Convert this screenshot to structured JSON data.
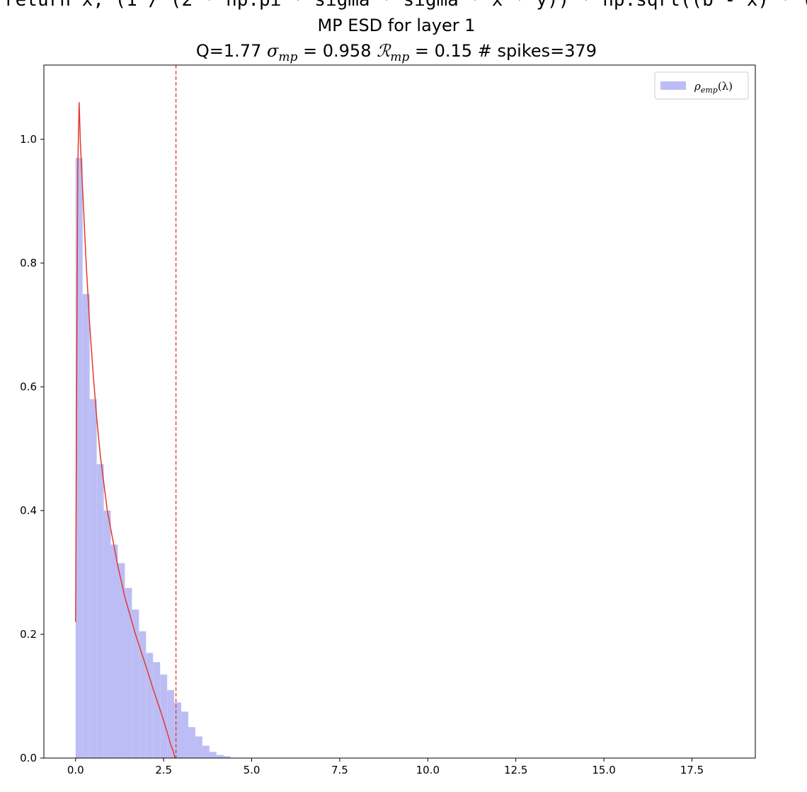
{
  "header": {
    "code_fragment": "return x, (1 / (2 * np.pi * sigma * sigma * x * y)) * np.sqrt((b - x) * ("
  },
  "colors": {
    "hist": "#bdbdf5",
    "mp_curve": "#e03a2f",
    "threshold": "#e03a2f"
  },
  "chart_data": {
    "type": "bar",
    "title": "MP ESD for layer 1",
    "subtitle": {
      "prefix": "Q=1.77 ",
      "sigma_symbol": "σ",
      "sigma_sub": "mp",
      "sigma_value": " = 0.958 ",
      "r_symbol": "ℛ",
      "r_sub": "mp",
      "r_value": " = 0.15 # spikes=379"
    },
    "legend": {
      "position": "top-right",
      "rho": "ρ",
      "rho_sub": "emp",
      "rho_arg": "(λ)"
    },
    "xlim": [
      -0.9,
      19.3
    ],
    "ylim": [
      0.0,
      1.12
    ],
    "xticks": [
      {
        "v": 0.0,
        "label": "0.0"
      },
      {
        "v": 2.5,
        "label": "2.5"
      },
      {
        "v": 5.0,
        "label": "5.0"
      },
      {
        "v": 7.5,
        "label": "7.5"
      },
      {
        "v": 10.0,
        "label": "10.0"
      },
      {
        "v": 12.5,
        "label": "12.5"
      },
      {
        "v": 15.0,
        "label": "15.0"
      },
      {
        "v": 17.5,
        "label": "17.5"
      }
    ],
    "yticks": [
      {
        "v": 0.0,
        "label": "0.0"
      },
      {
        "v": 0.2,
        "label": "0.2"
      },
      {
        "v": 0.4,
        "label": "0.4"
      },
      {
        "v": 0.6,
        "label": "0.6"
      },
      {
        "v": 0.8,
        "label": "0.8"
      },
      {
        "v": 1.0,
        "label": "1.0"
      }
    ],
    "histogram": {
      "bin_start": 0.0,
      "bin_width": 0.2,
      "values": [
        0.97,
        0.75,
        0.58,
        0.475,
        0.4,
        0.345,
        0.315,
        0.275,
        0.24,
        0.205,
        0.17,
        0.155,
        0.135,
        0.11,
        0.09,
        0.075,
        0.05,
        0.035,
        0.02,
        0.01,
        0.005,
        0.003
      ]
    },
    "mp_curve": {
      "lambda_minus": 0.0,
      "lambda_plus": 2.85,
      "points": [
        [
          0.0,
          0.22
        ],
        [
          0.03,
          0.6
        ],
        [
          0.06,
          0.95
        ],
        [
          0.1,
          1.06
        ],
        [
          0.14,
          0.99
        ],
        [
          0.2,
          0.92
        ],
        [
          0.3,
          0.8
        ],
        [
          0.4,
          0.7
        ],
        [
          0.5,
          0.62
        ],
        [
          0.6,
          0.55
        ],
        [
          0.7,
          0.49
        ],
        [
          0.8,
          0.445
        ],
        [
          0.9,
          0.4
        ],
        [
          1.0,
          0.37
        ],
        [
          1.1,
          0.34
        ],
        [
          1.2,
          0.31
        ],
        [
          1.3,
          0.285
        ],
        [
          1.4,
          0.26
        ],
        [
          1.5,
          0.24
        ],
        [
          1.6,
          0.22
        ],
        [
          1.7,
          0.2
        ],
        [
          1.8,
          0.183
        ],
        [
          1.9,
          0.165
        ],
        [
          2.0,
          0.148
        ],
        [
          2.1,
          0.13
        ],
        [
          2.2,
          0.112
        ],
        [
          2.3,
          0.095
        ],
        [
          2.4,
          0.078
        ],
        [
          2.5,
          0.06
        ],
        [
          2.6,
          0.042
        ],
        [
          2.7,
          0.022
        ],
        [
          2.78,
          0.01
        ],
        [
          2.82,
          0.0
        ]
      ]
    },
    "threshold_line": {
      "x": 2.85
    }
  }
}
